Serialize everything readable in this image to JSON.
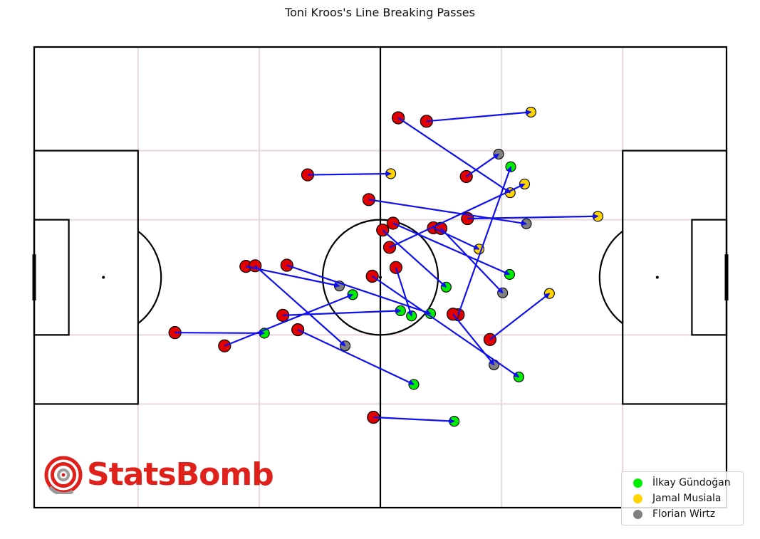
{
  "title": "Toni Kroos's Line Breaking Passes",
  "brand": {
    "name": "StatsBomb",
    "color": "#e0201b",
    "icon": "statsbomb-target-icon"
  },
  "legend": [
    {
      "label": "İlkay Gündoğan",
      "color": "#00ee00"
    },
    {
      "label": "Jamal Musiala",
      "color": "#ffd400"
    },
    {
      "label": "Florian Wirtz",
      "color": "#808080"
    }
  ],
  "chart_data": {
    "type": "scatter",
    "title": "Toni Kroos's Line Breaking Passes",
    "pitch": {
      "length": 120,
      "width": 80,
      "grid": true
    },
    "colors": {
      "origin": "#e00000",
      "arrow": "#1010ee",
      "lines": "#000000",
      "grid": "#e8d8dc"
    },
    "series": [
      {
        "name": "İlkay Gündoğan",
        "color": "#00ee00",
        "passes": [
          {
            "start": [
              24.4,
              49.6
            ],
            "end": [
              39.9,
              49.7
            ]
          },
          {
            "start": [
              45.7,
              49.1
            ],
            "end": [
              65.8,
              58.6
            ]
          },
          {
            "start": [
              43.8,
              37.9
            ],
            "end": [
              68.7,
              46.3
            ]
          },
          {
            "start": [
              58.6,
              39.8
            ],
            "end": [
              84.0,
              57.3
            ]
          },
          {
            "start": [
              62.2,
              30.6
            ],
            "end": [
              82.4,
              39.5
            ]
          },
          {
            "start": [
              60.4,
              31.8
            ],
            "end": [
              71.4,
              41.7
            ]
          },
          {
            "start": [
              58.8,
              64.3
            ],
            "end": [
              72.8,
              65.0
            ]
          },
          {
            "start": [
              33.0,
              51.9
            ],
            "end": [
              55.2,
              43.0
            ]
          },
          {
            "start": [
              43.1,
              46.6
            ],
            "end": [
              63.5,
              45.8
            ]
          },
          {
            "start": [
              73.5,
              46.5
            ],
            "end": [
              82.6,
              20.8
            ]
          },
          {
            "start": [
              62.7,
              38.3
            ],
            "end": [
              65.4,
              46.7
            ]
          }
        ]
      },
      {
        "name": "Jamal Musiala",
        "color": "#ffd400",
        "passes": [
          {
            "start": [
              68.0,
              12.9
            ],
            "end": [
              86.1,
              11.3
            ]
          },
          {
            "start": [
              47.4,
              22.2
            ],
            "end": [
              61.8,
              22.0
            ]
          },
          {
            "start": [
              75.1,
              29.8
            ],
            "end": [
              97.7,
              29.4
            ]
          },
          {
            "start": [
              63.1,
              12.3
            ],
            "end": [
              82.5,
              25.3
            ]
          },
          {
            "start": [
              79.0,
              50.8
            ],
            "end": [
              89.3,
              42.8
            ]
          },
          {
            "start": [
              61.6,
              34.8
            ],
            "end": [
              85.0,
              23.8
            ]
          },
          {
            "start": [
              69.2,
              31.4
            ],
            "end": [
              77.1,
              35.1
            ]
          }
        ]
      },
      {
        "name": "Florian Wirtz",
        "color": "#808080",
        "passes": [
          {
            "start": [
              36.7,
              38.1
            ],
            "end": [
              52.9,
              41.5
            ]
          },
          {
            "start": [
              38.3,
              38.0
            ],
            "end": [
              53.9,
              51.9
            ]
          },
          {
            "start": [
              74.9,
              22.5
            ],
            "end": [
              80.5,
              18.6
            ]
          },
          {
            "start": [
              70.5,
              31.5
            ],
            "end": [
              81.2,
              42.7
            ]
          },
          {
            "start": [
              72.6,
              46.4
            ],
            "end": [
              79.7,
              55.2
            ]
          },
          {
            "start": [
              58.0,
              26.5
            ],
            "end": [
              85.3,
              30.7
            ]
          }
        ]
      }
    ]
  }
}
